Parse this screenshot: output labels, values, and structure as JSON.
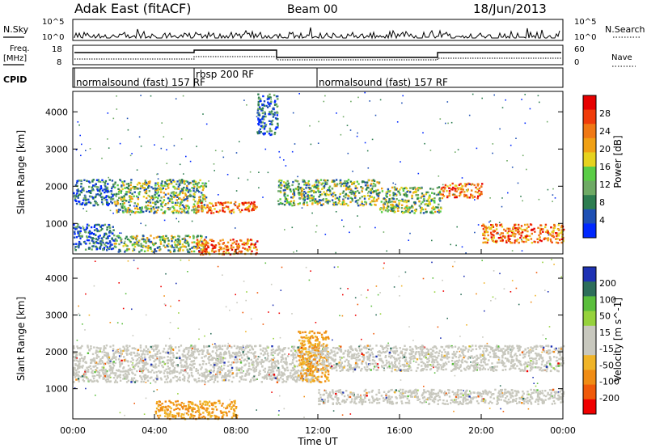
{
  "header": {
    "station": "Adak East (fitACF)",
    "beam": "Beam 00",
    "date": "18/Jun/2013"
  },
  "labels": {
    "nsky": "N.Sky",
    "nsearch": "N.Search",
    "freq": "Freq.",
    "freq_unit": "[MHz]",
    "nave": "Nave",
    "cpid": "CPID"
  },
  "count_axis_ticks": [
    "10^5",
    "10^0"
  ],
  "freq_ticks": [
    "18",
    "8"
  ],
  "nave_ticks": [
    "60",
    "0"
  ],
  "cpid_segments": [
    {
      "label": "normalsound (fast) 157 RF",
      "start_hour": 0.0
    },
    {
      "label": "rbsp 200 RF",
      "start_hour": 6.0
    },
    {
      "label": "normalsound (fast) 157 RF",
      "start_hour": 12.0
    }
  ],
  "colors": {
    "power": [
      "#0028ff",
      "#1e50b4",
      "#2d7d50",
      "#6eaa64",
      "#5acd46",
      "#e6d21e",
      "#f0a014",
      "#f07814",
      "#f03c0a",
      "#e60000"
    ],
    "velocity": [
      "#1e32b4",
      "#2d6e5a",
      "#5abe3c",
      "#96d23c",
      "#c8c8be",
      "#c8c8be",
      "#f0b428",
      "#f08c14",
      "#f05a0a",
      "#f00000"
    ]
  },
  "chart_data": [
    {
      "type": "heatmap",
      "name": "Power",
      "xlabel": "Time UT",
      "ylabel": "Slant Range [km]",
      "x_ticks": [
        "00:00",
        "04:00",
        "08:00",
        "12:00",
        "16:00",
        "20:00",
        "00:00"
      ],
      "y_ticks": [
        "1000",
        "2000",
        "3000",
        "4000"
      ],
      "ylim": [
        180,
        4550
      ],
      "xlim_hours": [
        0,
        24
      ],
      "colorbar": {
        "label": "Power [dB]",
        "ticks": [
          "4",
          "8",
          "12",
          "16",
          "20",
          "24",
          "28"
        ],
        "range": [
          0,
          30
        ]
      },
      "echo_bands": [
        {
          "hours": [
            0.0,
            2.0
          ],
          "ranges": [
            [
              1500,
              2200
            ],
            [
              300,
              1000
            ]
          ],
          "power": "low"
        },
        {
          "hours": [
            2.0,
            6.5
          ],
          "ranges": [
            [
              1300,
              2200
            ],
            [
              250,
              700
            ]
          ],
          "power": "mid"
        },
        {
          "hours": [
            6.0,
            9.0
          ],
          "ranges": [
            [
              1300,
              1600
            ],
            [
              180,
              600
            ]
          ],
          "power": "high"
        },
        {
          "hours": [
            9.0,
            10.0
          ],
          "ranges": [
            [
              3400,
              4500
            ]
          ],
          "power": "low"
        },
        {
          "hours": [
            10.0,
            15.0
          ],
          "ranges": [
            [
              1500,
              2200
            ]
          ],
          "power": "mid"
        },
        {
          "hours": [
            15.0,
            18.0
          ],
          "ranges": [
            [
              1300,
              2000
            ]
          ],
          "power": "mid"
        },
        {
          "hours": [
            18.0,
            20.0
          ],
          "ranges": [
            [
              1700,
              2100
            ]
          ],
          "power": "high"
        },
        {
          "hours": [
            20.0,
            24.0
          ],
          "ranges": [
            [
              500,
              1000
            ]
          ],
          "power": "high"
        }
      ]
    },
    {
      "type": "heatmap",
      "name": "Velocity",
      "xlabel": "Time UT",
      "ylabel": "Slant Range [km]",
      "x_ticks": [
        "00:00",
        "04:00",
        "08:00",
        "12:00",
        "16:00",
        "20:00",
        "00:00"
      ],
      "y_ticks": [
        "1000",
        "2000",
        "3000",
        "4000"
      ],
      "ylim": [
        180,
        4550
      ],
      "xlim_hours": [
        0,
        24
      ],
      "colorbar": {
        "label": "Velocity [m s^-1]",
        "ticks": [
          "200",
          "100",
          "50",
          "15",
          "-15",
          "-50",
          "-100",
          "-200"
        ],
        "range": [
          -250,
          250
        ]
      },
      "echo_bands": [
        {
          "hours": [
            0.0,
            12.0
          ],
          "ranges": [
            [
              1200,
              2200
            ]
          ],
          "velocity": "near-zero (ground scatter)"
        },
        {
          "hours": [
            4.0,
            8.0
          ],
          "ranges": [
            [
              200,
              700
            ]
          ],
          "velocity": "negative (-15 to -50)"
        },
        {
          "hours": [
            11.0,
            12.5
          ],
          "ranges": [
            [
              1200,
              2600
            ]
          ],
          "velocity": "negative (-50)"
        },
        {
          "hours": [
            12.0,
            24.0
          ],
          "ranges": [
            [
              1500,
              2200
            ],
            [
              600,
              1000
            ]
          ],
          "velocity": "near-zero (ground scatter)"
        }
      ]
    }
  ]
}
